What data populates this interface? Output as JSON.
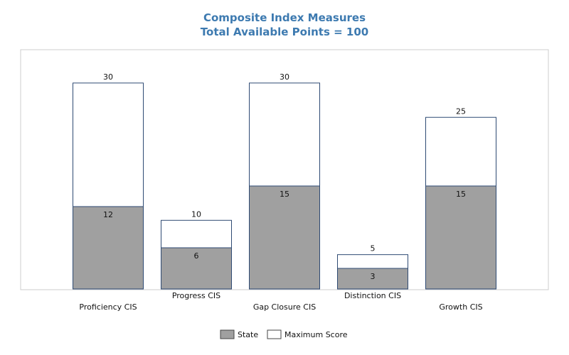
{
  "chart_data": {
    "type": "bar",
    "title": "Composite Index Measures",
    "subtitle": "Total Available Points = 100",
    "categories": [
      "Proficiency CIS",
      "Progress CIS",
      "Gap Closure CIS",
      "Distinction CIS",
      "Growth CIS"
    ],
    "series": [
      {
        "name": "State",
        "values": [
          12,
          6,
          15,
          3,
          15
        ],
        "color": "#a0a0a0"
      },
      {
        "name": "Maximum Score",
        "values": [
          30,
          10,
          30,
          5,
          25
        ],
        "color": "#ffffff"
      }
    ],
    "ylim": [
      0,
      30
    ],
    "grid": false,
    "legend_position": "bottom-center",
    "bar_outline_color": "#2e4a73",
    "title_color": "#3d7ab0"
  }
}
